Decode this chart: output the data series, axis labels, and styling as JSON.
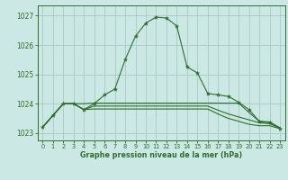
{
  "bg_color": "#cce8e4",
  "grid_color": "#aacfc8",
  "line_color": "#2d6e2d",
  "title": "Graphe pression niveau de la mer (hPa)",
  "title_color": "#2d6e2d",
  "xlim": [
    -0.5,
    23.5
  ],
  "ylim": [
    1022.75,
    1027.35
  ],
  "yticks": [
    1023,
    1024,
    1025,
    1026,
    1027
  ],
  "xticks": [
    0,
    1,
    2,
    3,
    4,
    5,
    6,
    7,
    8,
    9,
    10,
    11,
    12,
    13,
    14,
    15,
    16,
    17,
    18,
    19,
    20,
    21,
    22,
    23
  ],
  "series": [
    [
      1023.2,
      1023.6,
      1024.0,
      1024.0,
      1023.8,
      1024.0,
      1024.3,
      1024.5,
      1025.5,
      1026.3,
      1026.75,
      1026.95,
      1026.92,
      1026.65,
      1025.25,
      1025.05,
      1024.35,
      1024.3,
      1024.25,
      1024.05,
      1023.8,
      1023.4,
      1023.35,
      1023.15
    ],
    [
      1023.2,
      1023.6,
      1024.0,
      1024.0,
      1024.0,
      1024.02,
      1024.02,
      1024.02,
      1024.02,
      1024.02,
      1024.02,
      1024.02,
      1024.02,
      1024.02,
      1024.02,
      1024.02,
      1024.02,
      1024.02,
      1024.02,
      1024.02,
      1023.7,
      1023.4,
      1023.38,
      1023.18
    ],
    [
      1023.2,
      1023.6,
      1024.0,
      1024.0,
      1023.8,
      1023.92,
      1023.92,
      1023.92,
      1023.92,
      1023.92,
      1023.92,
      1023.92,
      1023.92,
      1023.92,
      1023.92,
      1023.92,
      1023.92,
      1023.78,
      1023.65,
      1023.55,
      1023.45,
      1023.35,
      1023.32,
      1023.18
    ],
    [
      1023.2,
      1023.6,
      1024.0,
      1024.0,
      1023.8,
      1023.82,
      1023.82,
      1023.82,
      1023.82,
      1023.82,
      1023.82,
      1023.82,
      1023.82,
      1023.82,
      1023.82,
      1023.82,
      1023.82,
      1023.65,
      1023.5,
      1023.4,
      1023.3,
      1023.25,
      1023.25,
      1023.15
    ]
  ]
}
